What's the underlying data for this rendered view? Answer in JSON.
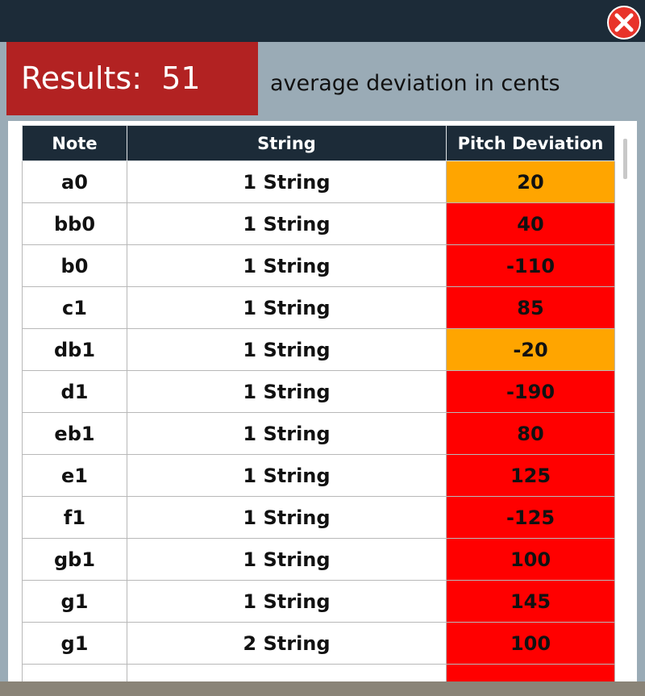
{
  "header": {
    "results_label": "Results:",
    "average": 51,
    "caption": "average deviation in cents"
  },
  "table": {
    "columns": [
      "Note",
      "String",
      "Pitch Deviation"
    ],
    "rows": [
      {
        "note": "a0",
        "string": "1 String",
        "deviation": 20,
        "color": "#ffa500"
      },
      {
        "note": "bb0",
        "string": "1 String",
        "deviation": 40,
        "color": "#ff0000"
      },
      {
        "note": "b0",
        "string": "1 String",
        "deviation": -110,
        "color": "#ff0000"
      },
      {
        "note": "c1",
        "string": "1 String",
        "deviation": 85,
        "color": "#ff0000"
      },
      {
        "note": "db1",
        "string": "1 String",
        "deviation": -20,
        "color": "#ffa500"
      },
      {
        "note": "d1",
        "string": "1 String",
        "deviation": -190,
        "color": "#ff0000"
      },
      {
        "note": "eb1",
        "string": "1 String",
        "deviation": 80,
        "color": "#ff0000"
      },
      {
        "note": "e1",
        "string": "1 String",
        "deviation": 125,
        "color": "#ff0000"
      },
      {
        "note": "f1",
        "string": "1 String",
        "deviation": -125,
        "color": "#ff0000"
      },
      {
        "note": "gb1",
        "string": "1 String",
        "deviation": 100,
        "color": "#ff0000"
      },
      {
        "note": "g1",
        "string": "1 String",
        "deviation": 145,
        "color": "#ff0000"
      },
      {
        "note": "g1",
        "string": "2 String",
        "deviation": 100,
        "color": "#ff0000"
      }
    ]
  }
}
